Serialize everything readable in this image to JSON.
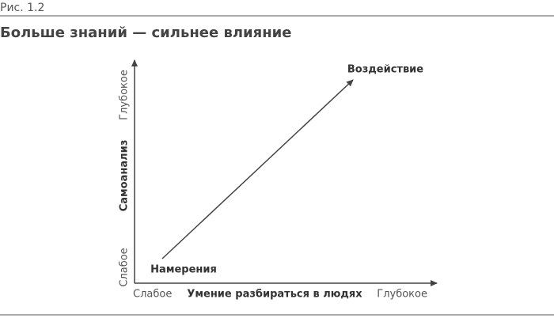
{
  "header": {
    "figure_label": "Рис. 1.2",
    "title": "Больше знаний — сильнее влияние"
  },
  "diagram": {
    "x_axis": {
      "low": "Слабое",
      "title": "Умение разбираться в людях",
      "high": "Глубокое"
    },
    "y_axis": {
      "low": "Слабое",
      "title": "Самоанализ",
      "high": "Глубокое"
    },
    "arrow": {
      "start_label": "Намерения",
      "end_label": "Воздействие"
    }
  }
}
